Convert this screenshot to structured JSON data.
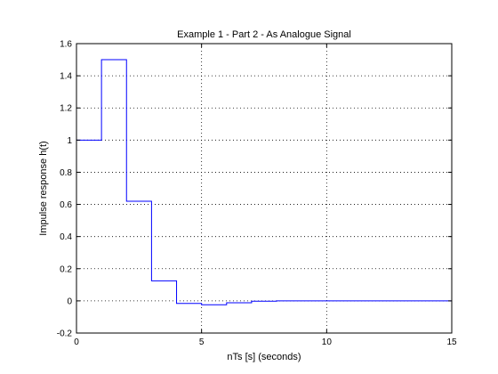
{
  "chart_data": {
    "type": "line",
    "title": "Example 1 - Part 2 - As Analogue Signal",
    "xlabel": "nTs [s] (seconds)",
    "ylabel": "Impulse response h(t)",
    "xlim": [
      0,
      15
    ],
    "ylim": [
      -0.2,
      1.6
    ],
    "xticks": [
      0,
      5,
      10,
      15
    ],
    "xtick_labels": [
      "0",
      "5",
      "10",
      "15"
    ],
    "yticks": [
      -0.2,
      0,
      0.2,
      0.4,
      0.6,
      0.8,
      1,
      1.2,
      1.4,
      1.6
    ],
    "ytick_labels": [
      "-0.2",
      "0",
      "0.2",
      "0.4",
      "0.6",
      "0.8",
      "1",
      "1.2",
      "1.4",
      "1.6"
    ],
    "grid": true,
    "grid_style": "dotted",
    "step_style": "stairs",
    "series": [
      {
        "color": "#0000ff",
        "x": [
          0,
          1,
          2,
          3,
          4,
          5,
          6,
          7,
          8,
          9,
          10,
          11,
          12,
          13,
          14,
          15
        ],
        "y": [
          1.0,
          1.5,
          0.62,
          0.125,
          -0.016,
          -0.024,
          -0.012,
          -0.002,
          0,
          0,
          0,
          0,
          0,
          0,
          0,
          0
        ]
      }
    ]
  }
}
